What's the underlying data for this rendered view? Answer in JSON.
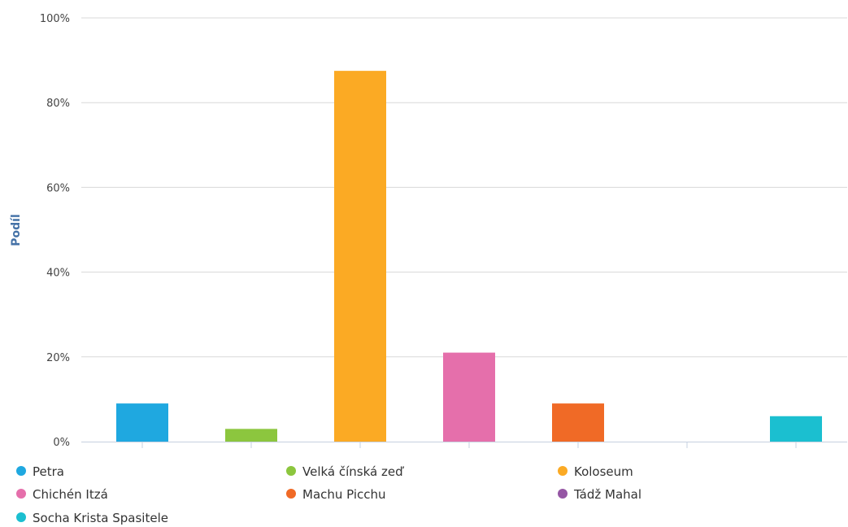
{
  "chart_data": {
    "type": "bar",
    "title": "",
    "xlabel": "",
    "ylabel": "Podíl",
    "ylim": [
      0,
      100
    ],
    "yticks": [
      "0%",
      "20%",
      "40%",
      "60%",
      "80%",
      "100%"
    ],
    "ytick_values": [
      0,
      20,
      40,
      60,
      80,
      100
    ],
    "grid": true,
    "legend_position": "bottom",
    "categories": [
      "Petra",
      "Velká čínská zeď",
      "Koloseum",
      "Chichén Itzá",
      "Machu Picchu",
      "Tádž Mahal",
      "Socha Krista Spasitele"
    ],
    "values": [
      9,
      3,
      87.5,
      21,
      9,
      0,
      6
    ],
    "colors": [
      "#1fa8e0",
      "#8cc63e",
      "#fbaa24",
      "#e56fab",
      "#f06a26",
      "#9556a4",
      "#1bbfd0"
    ]
  }
}
